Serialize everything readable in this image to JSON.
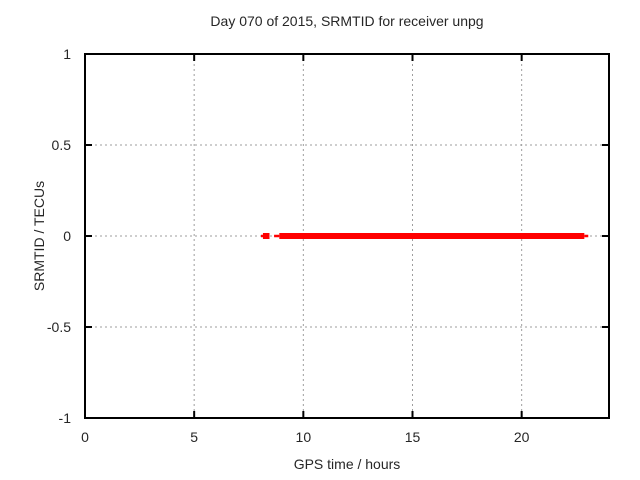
{
  "chart_data": {
    "type": "scatter",
    "title": "Day 070 of 2015, SRMTID for receiver unpg",
    "xlabel": "GPS time / hours",
    "ylabel": "SRMTID / TECUs",
    "xlim": [
      0,
      24
    ],
    "ylim": [
      -1,
      1
    ],
    "xticks": [
      0,
      5,
      10,
      15,
      20
    ],
    "yticks": [
      -1,
      -0.5,
      0,
      0.5,
      1
    ],
    "grid": true,
    "legend": "none",
    "series": [
      {
        "name": "SRMTID",
        "color": "#ff0000",
        "y_value": 0,
        "segments": [
          {
            "x1": 8.06,
            "x2": 8.15,
            "y": 0,
            "thickness": "thin"
          },
          {
            "x1": 8.15,
            "x2": 8.45,
            "y": 0,
            "thickness": "thick"
          },
          {
            "x1": 8.66,
            "x2": 8.9,
            "y": 0,
            "thickness": "thin"
          },
          {
            "x1": 8.9,
            "x2": 22.87,
            "y": 0,
            "thickness": "thick"
          },
          {
            "x1": 22.87,
            "x2": 23.05,
            "y": 0,
            "thickness": "thin"
          }
        ]
      }
    ]
  }
}
